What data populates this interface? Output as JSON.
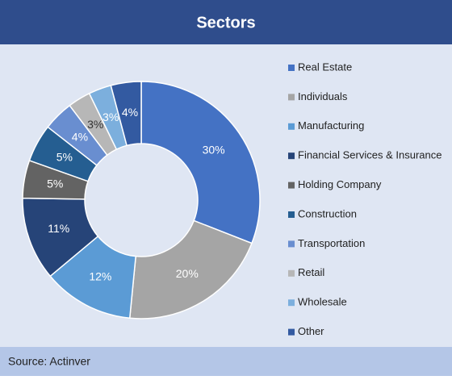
{
  "chart_data": {
    "type": "donut",
    "title": "Sectors",
    "source": "Source: Actinver",
    "categories": [
      "Real Estate",
      "Individuals",
      "Manufacturing",
      "Financial Services & Insurance",
      "Holding Company",
      "Construction",
      "Transportation",
      "Retail",
      "Wholesale",
      "Other"
    ],
    "values": [
      30,
      20,
      12,
      11,
      5,
      5,
      4,
      3,
      3,
      4
    ],
    "value_labels": [
      "30%",
      "20%",
      "12%",
      "11%",
      "5%",
      "5%",
      "4%",
      "3%",
      "3%",
      "4%"
    ],
    "colors": [
      "#4472c4",
      "#a5a5a5",
      "#5b9bd5",
      "#264478",
      "#636363",
      "#255e91",
      "#698ed0",
      "#b7b7b7",
      "#7cafdd",
      "#335aa1"
    ],
    "legend": "right"
  }
}
